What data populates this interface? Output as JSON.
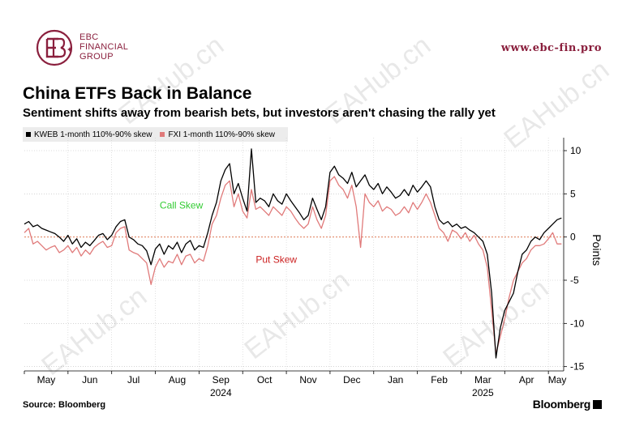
{
  "brand": {
    "line1": "EBC",
    "line2": "FINANCIAL",
    "line3": "GROUP",
    "website": "www.ebc-fin.pro",
    "color": "#8a1f3d"
  },
  "watermark": "EAHub.cn",
  "title": "China ETFs Back in Balance",
  "subtitle": "Sentiment shifts away from bearish bets, but investors aren't chasing the rally yet",
  "source": "Source: Bloomberg",
  "footer_brand": "Bloomberg",
  "chart_data": {
    "type": "line",
    "ylabel": "Points",
    "ylim": [
      -15.5,
      11.5
    ],
    "yticks": [
      10,
      5,
      0,
      -5,
      -10,
      -15
    ],
    "xlim": [
      0,
      12.35
    ],
    "month_ticks": [
      {
        "label": "May",
        "x": 0.5
      },
      {
        "label": "Jun",
        "x": 1.5
      },
      {
        "label": "Jul",
        "x": 2.5
      },
      {
        "label": "Aug",
        "x": 3.5
      },
      {
        "label": "Sep",
        "x": 4.5
      },
      {
        "label": "Oct",
        "x": 5.5
      },
      {
        "label": "Nov",
        "x": 6.5
      },
      {
        "label": "Dec",
        "x": 7.5
      },
      {
        "label": "Jan",
        "x": 8.5
      },
      {
        "label": "Feb",
        "x": 9.5
      },
      {
        "label": "Mar",
        "x": 10.5
      },
      {
        "label": "Apr",
        "x": 11.5
      },
      {
        "label": "May",
        "x": 12.5
      }
    ],
    "year_labels": [
      {
        "label": "2024",
        "x": 4.5
      },
      {
        "label": "2025",
        "x": 10.5
      }
    ],
    "zero_line": 0,
    "annotations": [
      {
        "text": "Call Skew",
        "x": 3.1,
        "y": 3.3,
        "color": "#33cc33"
      },
      {
        "text": "Put Skew",
        "x": 5.3,
        "y": -3.0,
        "color": "#cc2222"
      }
    ],
    "series": [
      {
        "name": "KWEB 1-month 110%-90% skew",
        "color": "#000000",
        "x": [
          0.0,
          0.1,
          0.2,
          0.3,
          0.4,
          0.5,
          0.6,
          0.7,
          0.8,
          0.9,
          1.0,
          1.1,
          1.2,
          1.3,
          1.4,
          1.5,
          1.6,
          1.7,
          1.8,
          1.9,
          2.0,
          2.1,
          2.2,
          2.3,
          2.4,
          2.5,
          2.6,
          2.7,
          2.8,
          2.9,
          3.0,
          3.1,
          3.2,
          3.3,
          3.4,
          3.5,
          3.6,
          3.7,
          3.8,
          3.9,
          4.0,
          4.1,
          4.2,
          4.3,
          4.4,
          4.5,
          4.6,
          4.7,
          4.8,
          4.9,
          5.0,
          5.1,
          5.2,
          5.3,
          5.4,
          5.5,
          5.6,
          5.7,
          5.8,
          5.9,
          6.0,
          6.1,
          6.2,
          6.3,
          6.4,
          6.5,
          6.6,
          6.7,
          6.8,
          6.9,
          7.0,
          7.1,
          7.2,
          7.3,
          7.4,
          7.5,
          7.6,
          7.7,
          7.8,
          7.9,
          8.0,
          8.1,
          8.2,
          8.3,
          8.4,
          8.5,
          8.6,
          8.7,
          8.8,
          8.9,
          9.0,
          9.1,
          9.2,
          9.3,
          9.4,
          9.5,
          9.6,
          9.7,
          9.8,
          9.9,
          10.0,
          10.1,
          10.2,
          10.3,
          10.4,
          10.5,
          10.6,
          10.7,
          10.8,
          10.9,
          11.0,
          11.1,
          11.2,
          11.3,
          11.4,
          11.5,
          11.6,
          11.7,
          11.8,
          11.9,
          12.0,
          12.1,
          12.2,
          12.3
        ],
        "values": [
          1.5,
          1.8,
          1.2,
          1.4,
          1.0,
          0.8,
          0.6,
          0.4,
          0.0,
          -0.5,
          0.2,
          -0.8,
          -0.2,
          -1.2,
          -0.6,
          -1.0,
          -0.4,
          0.2,
          0.4,
          -0.3,
          0.2,
          1.2,
          1.8,
          2.0,
          0.0,
          -0.3,
          -0.8,
          -1.0,
          -1.6,
          -3.2,
          -1.4,
          -0.8,
          -2.0,
          -1.0,
          -1.4,
          -0.6,
          -1.8,
          -0.8,
          -0.4,
          -1.5,
          -1.0,
          -1.2,
          0.5,
          2.5,
          4.0,
          6.5,
          7.8,
          8.5,
          5.0,
          6.2,
          4.5,
          3.0,
          10.2,
          4.0,
          4.5,
          4.2,
          3.5,
          5.0,
          4.2,
          3.8,
          5.0,
          4.2,
          3.5,
          2.8,
          2.0,
          2.5,
          4.5,
          3.2,
          2.0,
          3.5,
          7.5,
          8.2,
          7.2,
          6.8,
          6.2,
          7.5,
          5.8,
          6.5,
          7.2,
          6.0,
          5.5,
          6.2,
          5.0,
          5.8,
          5.2,
          4.5,
          4.8,
          5.5,
          4.8,
          6.0,
          5.2,
          5.8,
          6.5,
          5.8,
          3.5,
          2.0,
          1.5,
          1.8,
          1.2,
          1.5,
          1.0,
          1.2,
          0.8,
          0.5,
          0.0,
          -0.5,
          -2.0,
          -6.5,
          -14.0,
          -10.5,
          -8.5,
          -7.5,
          -6.5,
          -4.0,
          -2.0,
          -1.5,
          -0.5,
          0.0,
          -0.3,
          0.5,
          1.0,
          1.5,
          2.0,
          2.2
        ]
      },
      {
        "name": "FXI 1-month 110%-90% skew",
        "color": "#e07a7a",
        "x": [
          0.0,
          0.1,
          0.2,
          0.3,
          0.4,
          0.5,
          0.6,
          0.7,
          0.8,
          0.9,
          1.0,
          1.1,
          1.2,
          1.3,
          1.4,
          1.5,
          1.6,
          1.7,
          1.8,
          1.9,
          2.0,
          2.1,
          2.2,
          2.3,
          2.4,
          2.5,
          2.6,
          2.7,
          2.8,
          2.9,
          3.0,
          3.1,
          3.2,
          3.3,
          3.4,
          3.5,
          3.6,
          3.7,
          3.8,
          3.9,
          4.0,
          4.1,
          4.2,
          4.3,
          4.4,
          4.5,
          4.6,
          4.7,
          4.8,
          4.9,
          5.0,
          5.1,
          5.2,
          5.3,
          5.4,
          5.5,
          5.6,
          5.7,
          5.8,
          5.9,
          6.0,
          6.1,
          6.2,
          6.3,
          6.4,
          6.5,
          6.6,
          6.7,
          6.8,
          6.9,
          7.0,
          7.1,
          7.2,
          7.3,
          7.4,
          7.5,
          7.6,
          7.7,
          7.8,
          7.9,
          8.0,
          8.1,
          8.2,
          8.3,
          8.4,
          8.5,
          8.6,
          8.7,
          8.8,
          8.9,
          9.0,
          9.1,
          9.2,
          9.3,
          9.4,
          9.5,
          9.6,
          9.7,
          9.8,
          9.9,
          10.0,
          10.1,
          10.2,
          10.3,
          10.4,
          10.5,
          10.6,
          10.7,
          10.8,
          10.9,
          11.0,
          11.1,
          11.2,
          11.3,
          11.4,
          11.5,
          11.6,
          11.7,
          11.8,
          11.9,
          12.0,
          12.1,
          12.2,
          12.3
        ],
        "values": [
          0.5,
          1.0,
          -0.8,
          -0.5,
          -1.0,
          -1.5,
          -1.2,
          -1.0,
          -1.8,
          -1.5,
          -1.0,
          -1.8,
          -1.2,
          -2.2,
          -1.5,
          -2.0,
          -1.2,
          -0.8,
          -0.5,
          -1.2,
          -1.0,
          0.5,
          1.0,
          1.2,
          -1.5,
          -1.8,
          -2.0,
          -2.5,
          -3.0,
          -5.5,
          -3.5,
          -2.5,
          -3.5,
          -2.8,
          -3.0,
          -2.0,
          -3.2,
          -2.2,
          -2.0,
          -3.0,
          -2.5,
          -2.8,
          -1.0,
          1.5,
          2.5,
          4.5,
          6.0,
          6.5,
          3.5,
          5.0,
          3.0,
          2.2,
          5.5,
          3.2,
          3.5,
          3.0,
          2.5,
          3.5,
          3.0,
          2.5,
          3.5,
          3.0,
          2.2,
          1.5,
          1.0,
          1.5,
          3.5,
          2.0,
          1.0,
          2.5,
          6.5,
          7.0,
          6.0,
          5.5,
          4.5,
          6.0,
          3.5,
          -1.2,
          5.0,
          4.0,
          3.5,
          4.2,
          3.0,
          3.5,
          3.2,
          2.5,
          2.8,
          3.5,
          2.8,
          4.0,
          3.2,
          4.0,
          5.0,
          4.0,
          2.5,
          1.0,
          0.5,
          -0.5,
          0.8,
          0.5,
          -0.2,
          0.5,
          -0.5,
          0.2,
          -0.8,
          -1.5,
          -3.5,
          -8.5,
          -13.5,
          -11.5,
          -9.5,
          -7.0,
          -5.0,
          -4.0,
          -3.0,
          -2.5,
          -1.5,
          -1.0,
          -1.0,
          -0.8,
          -0.2,
          0.5,
          -0.8,
          -0.8
        ]
      }
    ]
  }
}
